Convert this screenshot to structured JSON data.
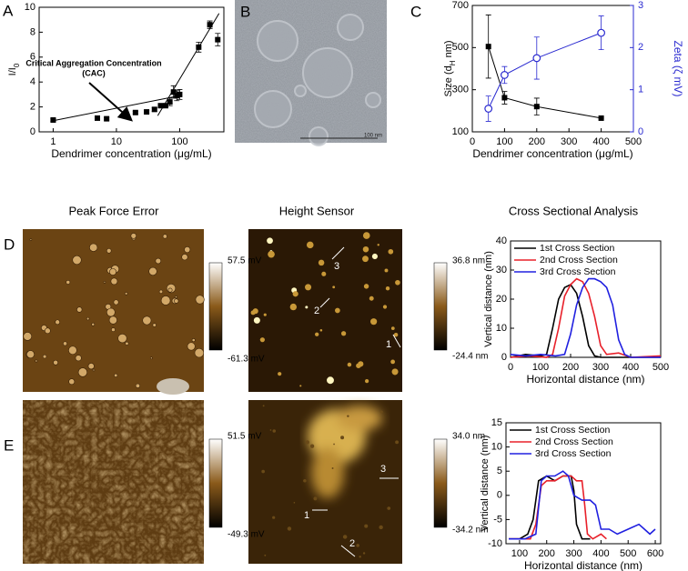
{
  "panel_labels": [
    "A",
    "B",
    "C",
    "D",
    "E"
  ],
  "row_titles": [
    "Peak Force Error",
    "Height Sensor",
    "Cross Sectional Analysis"
  ],
  "scale_bar": "100 nm",
  "colorbars": [
    {
      "max": "57.5 mV",
      "min": "-61.3 mV"
    },
    {
      "max": "36.8 nm",
      "min": "-24.4 nm"
    },
    {
      "max": "51.5 mV",
      "min": "-49.3 mV"
    },
    {
      "max": "34.0 nm",
      "min": "-34.2 nm"
    }
  ],
  "section_labels": [
    [
      "3",
      "2",
      "1"
    ],
    [
      "3",
      "1",
      "2"
    ]
  ],
  "chart_data": [
    {
      "type": "scatter",
      "y_label": [
        "I/I",
        "0"
      ],
      "x_label": "Dendrimer concentration (μg/mL)",
      "log_x": true,
      "xlim": [
        0.6,
        500
      ],
      "xticks": [
        1,
        10,
        100
      ],
      "ylim": [
        0,
        10
      ],
      "yticks": [
        0,
        2,
        4,
        6,
        8,
        10
      ],
      "annotation": [
        "Critical Aggregation Concentration",
        "(CAC)"
      ],
      "series": [
        {
          "color": "#000000",
          "marker": "square",
          "x": [
            1,
            5,
            7,
            20,
            30,
            40,
            50,
            60,
            70,
            80,
            90,
            100,
            200,
            300,
            400
          ],
          "values": [
            0.95,
            1.1,
            1.05,
            1.55,
            1.6,
            1.8,
            2.1,
            2.1,
            2.4,
            3.2,
            2.9,
            3.0,
            6.8,
            8.6,
            7.4
          ],
          "errors": [
            0.1,
            0.1,
            0.1,
            0.1,
            0.1,
            0.15,
            0.15,
            0.15,
            0.3,
            0.5,
            0.4,
            0.4,
            0.4,
            0.3,
            0.5
          ]
        }
      ],
      "fit_lines": [
        {
          "x": [
            1,
            100
          ],
          "values": [
            0.9,
            2.9
          ]
        },
        {
          "x": [
            45,
            420
          ],
          "values": [
            1.3,
            9.5
          ]
        }
      ]
    },
    {
      "type": "scatter",
      "y_label": [
        "Size (d",
        "H",
        " nm)"
      ],
      "y2_label": "Zeta (ζ mV)",
      "y2_color": "#2a2ad0",
      "x_label": "Dendrimer concentration (μg/mL)",
      "xlim": [
        0,
        500
      ],
      "xticks": [
        0,
        100,
        200,
        300,
        400,
        500
      ],
      "ylim": [
        100,
        700
      ],
      "yticks": [
        100,
        300,
        500,
        700
      ],
      "y2lim": [
        0,
        3
      ],
      "y2ticks": [
        0,
        1,
        2,
        3
      ],
      "series": [
        {
          "color": "#000000",
          "marker": "square",
          "connect": true,
          "x": [
            50,
            100,
            200,
            400
          ],
          "values": [
            505,
            262,
            220,
            165
          ],
          "errors": [
            150,
            30,
            40,
            0
          ]
        },
        {
          "color": "#2a2ad0",
          "marker": "open-circle",
          "connect": true,
          "axis": "y2",
          "x": [
            50,
            100,
            200,
            400
          ],
          "values": [
            0.55,
            1.35,
            1.75,
            2.35
          ],
          "errors": [
            0.3,
            0.2,
            0.5,
            0.4
          ]
        }
      ]
    },
    {
      "type": "line",
      "y_label": "Vertical distance (nm)",
      "x_label": "Horizontal distance (nm)",
      "xlim": [
        0,
        500
      ],
      "xticks": [
        0,
        100,
        200,
        300,
        400,
        500
      ],
      "ylim": [
        0,
        40
      ],
      "yticks": [
        0,
        10,
        20,
        30,
        40
      ],
      "legend": "upper left",
      "series": [
        {
          "name": "1st Cross Section",
          "color": "#000000",
          "x": [
            0,
            50,
            100,
            120,
            140,
            160,
            180,
            200,
            220,
            240,
            260,
            280,
            300,
            400,
            500
          ],
          "values": [
            0,
            1,
            0.5,
            1,
            10,
            20,
            24,
            25,
            22,
            14,
            4,
            0.5,
            0,
            0,
            0
          ]
        },
        {
          "name": "2nd Cross Section",
          "color": "#e8202a",
          "x": [
            0,
            60,
            120,
            140,
            160,
            180,
            200,
            220,
            240,
            260,
            280,
            300,
            320,
            360,
            400,
            500
          ],
          "values": [
            0,
            0.5,
            0,
            1,
            10,
            21,
            25,
            27,
            26,
            22,
            14,
            4,
            1,
            1.5,
            0,
            0.5
          ]
        },
        {
          "name": "3rd Cross Section",
          "color": "#2020e0",
          "x": [
            0,
            50,
            100,
            150,
            180,
            200,
            220,
            240,
            260,
            280,
            300,
            320,
            340,
            360,
            380,
            400,
            500
          ],
          "values": [
            1,
            0.5,
            1,
            0.5,
            1,
            8,
            18,
            24,
            27,
            27,
            26,
            24,
            18,
            6,
            1,
            0,
            0
          ]
        }
      ]
    },
    {
      "type": "line",
      "y_label": "Vertical distance (nm)",
      "x_label": "Horizontal distance (nm)",
      "xlim": [
        50,
        620
      ],
      "xticks": [
        100,
        200,
        300,
        400,
        500,
        600
      ],
      "ylim": [
        -10,
        15
      ],
      "yticks": [
        -10,
        -5,
        0,
        5,
        10,
        15
      ],
      "legend": "upper left",
      "series": [
        {
          "name": "1st Cross Section",
          "color": "#000000",
          "x": [
            60,
            100,
            130,
            150,
            170,
            200,
            230,
            260,
            290,
            300,
            310,
            330,
            360
          ],
          "values": [
            -9,
            -9,
            -8,
            -5,
            3,
            4,
            3,
            4,
            4,
            1,
            -6,
            -9,
            -9
          ]
        },
        {
          "name": "2nd Cross Section",
          "color": "#e8202a",
          "x": [
            60,
            100,
            140,
            160,
            180,
            200,
            230,
            260,
            290,
            310,
            330,
            340,
            350,
            370,
            400,
            420
          ],
          "values": [
            -9,
            -9,
            -9,
            -6,
            2,
            3,
            3,
            4,
            4,
            3,
            3,
            -2,
            -8,
            -9,
            -8,
            -9
          ]
        },
        {
          "name": "3rd Cross Section",
          "color": "#2020e0",
          "x": [
            60,
            120,
            160,
            180,
            200,
            230,
            260,
            280,
            300,
            330,
            360,
            380,
            400,
            430,
            460,
            500,
            540,
            560,
            580,
            600
          ],
          "values": [
            -9,
            -9,
            -8,
            3,
            4,
            4,
            5,
            4,
            0,
            -1,
            -1,
            -2,
            -7,
            -7,
            -8,
            -7,
            -6,
            -7,
            -8,
            -7
          ]
        }
      ]
    }
  ]
}
